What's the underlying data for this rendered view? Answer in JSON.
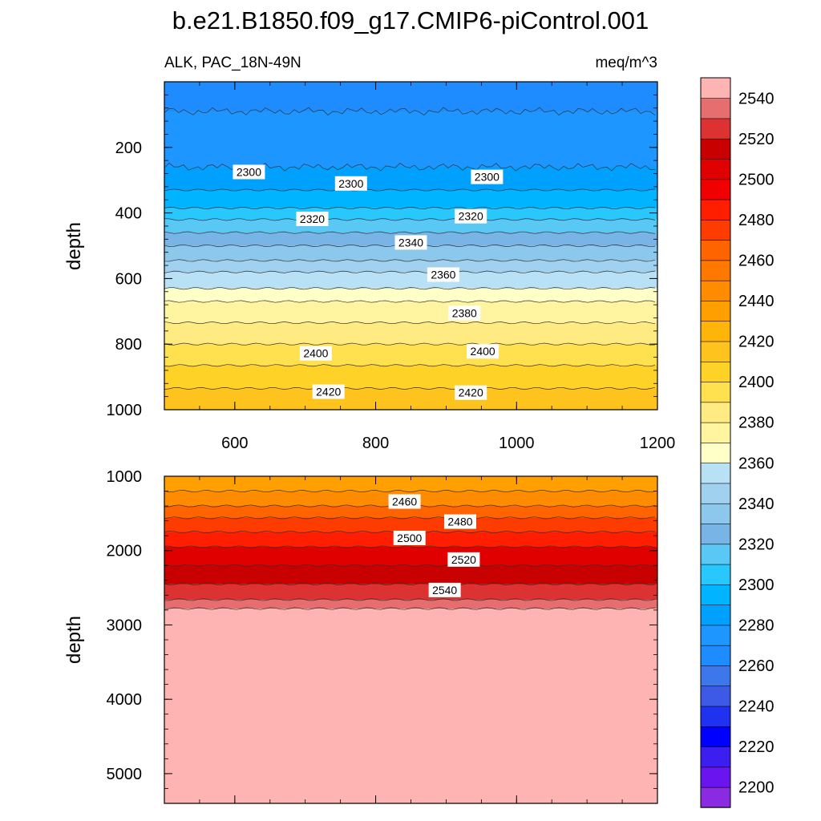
{
  "chart_data": {
    "type": "contour",
    "title": "b.e21.B1850.f09_g17.CMIP6-piControl.001",
    "panels": [
      {
        "subtitle_left": "ALK, PAC_18N-49N",
        "subtitle_right": "meq/m^3",
        "ylabel": "depth",
        "xlim": [
          500,
          1200
        ],
        "ylim": [
          0,
          1000
        ],
        "yreversed": true,
        "xticks": [
          600,
          800,
          1000,
          1200
        ],
        "yticks": [
          200,
          400,
          600,
          800,
          1000
        ],
        "contour_labels": [
          {
            "text": "2300",
            "x": 620,
            "y": 275
          },
          {
            "text": "2300",
            "x": 765,
            "y": 310
          },
          {
            "text": "2300",
            "x": 958,
            "y": 290
          },
          {
            "text": "2320",
            "x": 710,
            "y": 418
          },
          {
            "text": "2320",
            "x": 935,
            "y": 410
          },
          {
            "text": "2340",
            "x": 850,
            "y": 490
          },
          {
            "text": "2360",
            "x": 896,
            "y": 588
          },
          {
            "text": "2380",
            "x": 926,
            "y": 705
          },
          {
            "text": "2400",
            "x": 715,
            "y": 828
          },
          {
            "text": "2400",
            "x": 952,
            "y": 822
          },
          {
            "text": "2420",
            "x": 733,
            "y": 945
          },
          {
            "text": "2420",
            "x": 935,
            "y": 948
          }
        ]
      },
      {
        "ylabel": "depth",
        "xlim": [
          500,
          1200
        ],
        "ylim": [
          1000,
          5400
        ],
        "yreversed": true,
        "yticks": [
          1000,
          2000,
          3000,
          4000,
          5000
        ],
        "contour_labels": [
          {
            "text": "2460",
            "x": 841,
            "y": 1340
          },
          {
            "text": "2480",
            "x": 920,
            "y": 1610
          },
          {
            "text": "2500",
            "x": 848,
            "y": 1830
          },
          {
            "text": "2520",
            "x": 925,
            "y": 2120
          },
          {
            "text": "2540",
            "x": 898,
            "y": 2530
          }
        ]
      }
    ],
    "colorbar": {
      "labels": [
        "2200",
        "2220",
        "2240",
        "2260",
        "2280",
        "2300",
        "2320",
        "2340",
        "2360",
        "2380",
        "2400",
        "2420",
        "2440",
        "2460",
        "2480",
        "2500",
        "2520",
        "2540"
      ],
      "colors": [
        "#8a2be2",
        "#6a14f0",
        "#3c1ef0",
        "#0000ff",
        "#1e32f0",
        "#3c5ae6",
        "#3c78eb",
        "#1e8cff",
        "#1e96ff",
        "#00a0ff",
        "#00b4ff",
        "#28c8ff",
        "#5ac8f5",
        "#78b4e6",
        "#8cc8eb",
        "#a0d2f0",
        "#b9e1f5",
        "#ffffc8",
        "#fff5a0",
        "#ffeb82",
        "#ffe150",
        "#ffd228",
        "#ffc31e",
        "#ffb40a",
        "#ffa000",
        "#ff8c00",
        "#ff7800",
        "#ff6400",
        "#ff3c00",
        "#ff1e00",
        "#f00000",
        "#e10000",
        "#c80000",
        "#dc3232",
        "#e66e6e",
        "#ffb4b4"
      ]
    },
    "top_bands": [
      {
        "y": [
          0,
          90
        ],
        "color": "#1e8cff"
      },
      {
        "y": [
          90,
          260
        ],
        "color": "#1e96ff"
      },
      {
        "y": [
          260,
          330
        ],
        "color": "#00a0ff"
      },
      {
        "y": [
          330,
          385
        ],
        "color": "#00b4ff"
      },
      {
        "y": [
          385,
          420
        ],
        "color": "#28c8ff"
      },
      {
        "y": [
          420,
          460
        ],
        "color": "#5ac8f5"
      },
      {
        "y": [
          460,
          500
        ],
        "color": "#78b4e6"
      },
      {
        "y": [
          500,
          545
        ],
        "color": "#8cc8eb"
      },
      {
        "y": [
          545,
          580
        ],
        "color": "#a0d2f0"
      },
      {
        "y": [
          580,
          630
        ],
        "color": "#b9e1f5"
      },
      {
        "y": [
          630,
          670
        ],
        "color": "#ffffc8"
      },
      {
        "y": [
          670,
          735
        ],
        "color": "#fff5a0"
      },
      {
        "y": [
          735,
          800
        ],
        "color": "#ffeb82"
      },
      {
        "y": [
          800,
          865
        ],
        "color": "#ffe150"
      },
      {
        "y": [
          865,
          935
        ],
        "color": "#ffd228"
      },
      {
        "y": [
          935,
          1000
        ],
        "color": "#ffc31e"
      }
    ],
    "bottom_bands": [
      {
        "y": [
          1000,
          1200
        ],
        "color": "#ffa000"
      },
      {
        "y": [
          1200,
          1400
        ],
        "color": "#ff8c00"
      },
      {
        "y": [
          1400,
          1560
        ],
        "color": "#ff6400"
      },
      {
        "y": [
          1560,
          1750
        ],
        "color": "#ff3c00"
      },
      {
        "y": [
          1750,
          1950
        ],
        "color": "#ff1e00"
      },
      {
        "y": [
          1950,
          2200
        ],
        "color": "#e10000"
      },
      {
        "y": [
          2200,
          2450
        ],
        "color": "#c80000"
      },
      {
        "y": [
          2450,
          2660
        ],
        "color": "#dc3232"
      },
      {
        "y": [
          2660,
          2780
        ],
        "color": "#e66e6e"
      },
      {
        "y": [
          2780,
          5400
        ],
        "color": "#ffb4b4"
      }
    ]
  }
}
